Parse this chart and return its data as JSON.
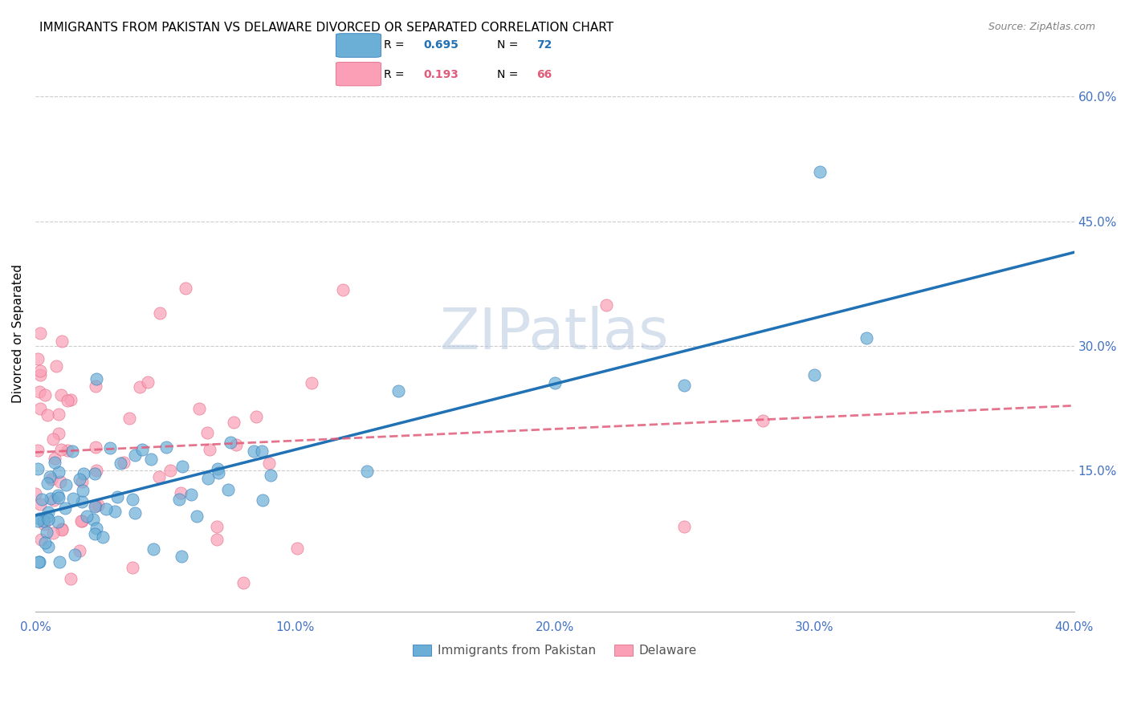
{
  "title": "IMMIGRANTS FROM PAKISTAN VS DELAWARE DIVORCED OR SEPARATED CORRELATION CHART",
  "source": "Source: ZipAtlas.com",
  "xlabel": "",
  "ylabel": "Divorced or Separated",
  "legend_label1": "Immigrants from Pakistan",
  "legend_label2": "Delaware",
  "R1": 0.695,
  "N1": 72,
  "R2": 0.193,
  "N2": 66,
  "color_blue": "#6baed6",
  "color_blue_line": "#2171b5",
  "color_pink": "#fa9fb5",
  "color_pink_line": "#e05c7a",
  "xlim": [
    0.0,
    0.4
  ],
  "ylim": [
    -0.02,
    0.65
  ],
  "xticks": [
    0.0,
    0.1,
    0.2,
    0.3,
    0.4
  ],
  "xtick_labels": [
    "0.0%",
    "10.0%",
    "20.0%",
    "30.0%",
    "40.0%"
  ],
  "ytick_positions": [
    0.15,
    0.3,
    0.45,
    0.6
  ],
  "ytick_labels": [
    "15.0%",
    "30.0%",
    "45.0%",
    "60.0%"
  ],
  "watermark": "ZIPatlas",
  "watermark_color": "#b0c4de",
  "background_color": "#ffffff",
  "grid_color": "#cccccc",
  "seed_blue": 42,
  "seed_pink": 123
}
